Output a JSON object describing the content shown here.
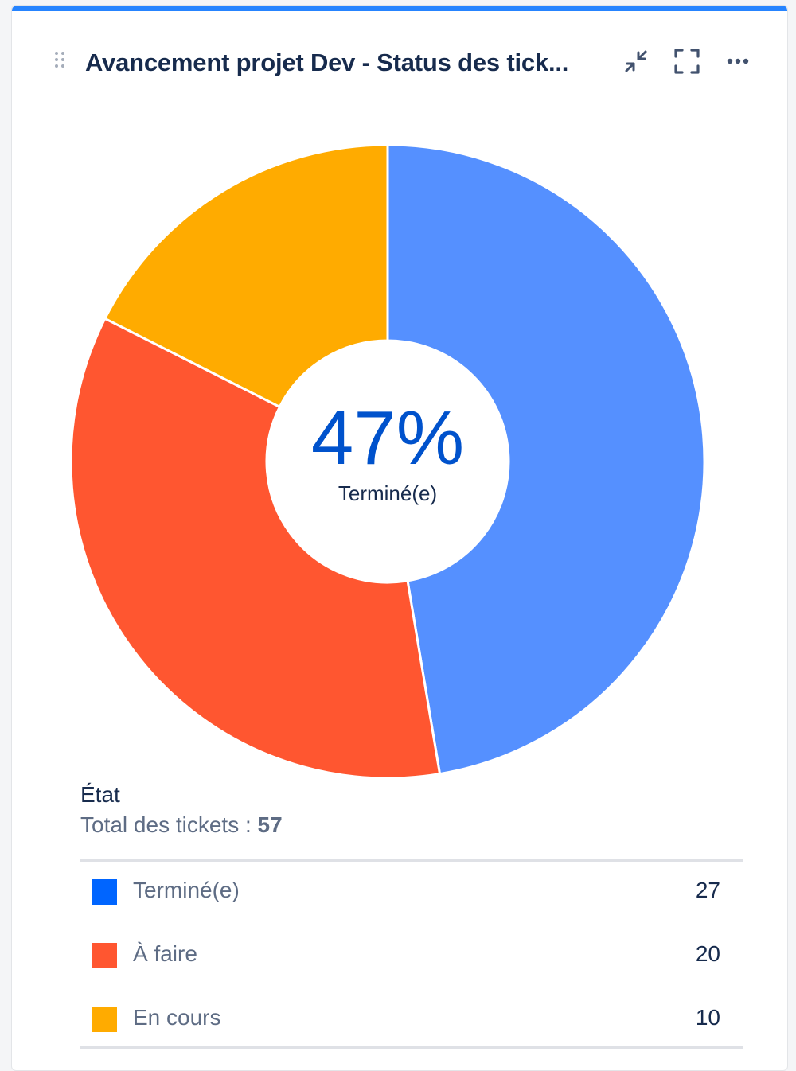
{
  "header": {
    "title": "Avancement projet Dev - Status des tick...",
    "icons": [
      "drag-handle-icon",
      "collapse-icon",
      "fullscreen-icon",
      "more-icon"
    ]
  },
  "center": {
    "percent": "47%",
    "label": "Terminé(e)"
  },
  "legend": {
    "title": "État",
    "total_label": "Total des tickets : ",
    "total_value": "57"
  },
  "colors": {
    "accent": "#2684ff",
    "done_slice": "#5590ff",
    "todo_slice": "#ff5630",
    "inprogress_slice": "#ffab00",
    "done_swatch": "#0065ff",
    "todo_swatch": "#ff5630",
    "inprogress_swatch": "#ffab00",
    "percent_text": "#0052cc"
  },
  "chart_data": {
    "type": "pie",
    "categories": [
      "Terminé(e)",
      "À faire",
      "En cours"
    ],
    "values": [
      27,
      20,
      10
    ],
    "center_text": "47%",
    "center_subtext": "Terminé(e)",
    "legend_title": "État",
    "total": 57,
    "legend_placement": "bottom"
  }
}
